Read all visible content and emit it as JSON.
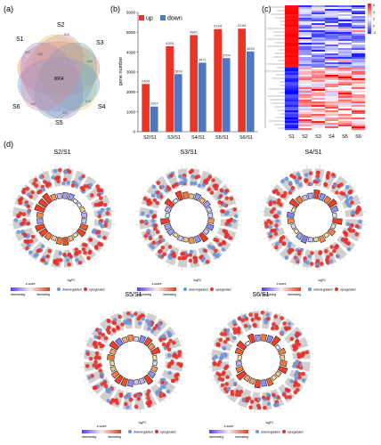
{
  "panel_labels": {
    "a": "(a)",
    "b": "(b)",
    "c": "(c)",
    "d": "(d)"
  },
  "venn": {
    "sets": [
      "S1",
      "S2",
      "S3",
      "S4",
      "S5",
      "S6"
    ],
    "center": "3664",
    "small": [
      "576",
      "444",
      "446",
      "615",
      "403",
      "453",
      "502"
    ],
    "colors": [
      "#e77a5a",
      "#d7cf5e",
      "#5aa9a8",
      "#6b9fd4",
      "#9a86c8",
      "#d98aa0"
    ]
  },
  "chart_data": [
    {
      "type": "bar",
      "categories": [
        "S2/S1",
        "S3/S1",
        "S4/S1",
        "S5/S1",
        "S6/S1"
      ],
      "series": [
        {
          "name": "up",
          "values": [
            2403,
            4305,
            4861,
            5164,
            5184
          ],
          "color": "#ee3224"
        },
        {
          "name": "down",
          "values": [
            1267,
            2899,
            3471,
            3704,
            4039
          ],
          "color": "#4f78c4"
        }
      ],
      "ylabel": "gene number",
      "ylim": [
        0,
        6000
      ],
      "yticks": [
        0,
        1000,
        2000,
        3000,
        4000,
        5000,
        6000
      ],
      "legend": "top-left"
    },
    {
      "type": "heatmap",
      "columns": [
        "S1",
        "S2",
        "S3",
        "S4",
        "S5",
        "S6"
      ],
      "color_scale": [
        "6",
        "4",
        "2",
        "0",
        "-2"
      ]
    }
  ],
  "circos": {
    "plots": [
      {
        "title": "S2/S1"
      },
      {
        "title": "S3/S1"
      },
      {
        "title": "S4/S1"
      },
      {
        "title": "S5/S1"
      },
      {
        "title": "S6/S1"
      }
    ],
    "legend": {
      "zscore": "z-score",
      "logfc": "logFC",
      "decreasing": "decreasing",
      "increasing": "increasing",
      "down": "downregulated",
      "up": "upregulated"
    }
  }
}
